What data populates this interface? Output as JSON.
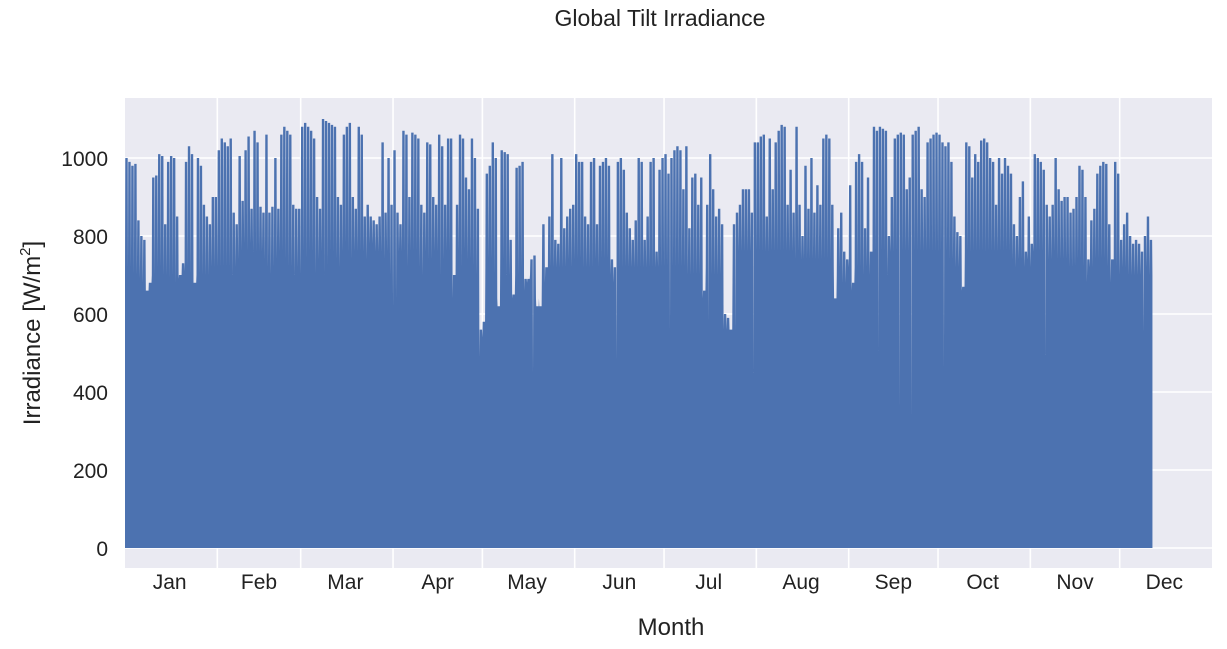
{
  "chart_data": {
    "type": "area",
    "title": "Global Tilt Irradiance",
    "xlabel": "Month",
    "ylabel": "Irradiance [W/m",
    "ylabel_sup": "2",
    "ylabel_suffix": "]",
    "ylim": [
      0,
      1150
    ],
    "yticks": [
      0,
      200,
      400,
      600,
      800,
      1000
    ],
    "xlim": [
      0,
      365
    ],
    "grid": true,
    "legend": "none",
    "colors": {
      "series": "#4c72b0",
      "plot_bg": "#eaeaf2",
      "grid": "#ffffff"
    },
    "month_labels": [
      "Jan",
      "Feb",
      "Mar",
      "Apr",
      "May",
      "Jun",
      "Jul",
      "Aug",
      "Sep",
      "Oct",
      "Nov",
      "Dec"
    ],
    "month_label_days": [
      15,
      45,
      74,
      105,
      135,
      166,
      196,
      227,
      258,
      288,
      319,
      349
    ],
    "month_boundary_days": [
      0,
      31,
      59,
      90,
      120,
      151,
      181,
      212,
      243,
      273,
      304,
      334,
      365
    ],
    "series": [
      {
        "daily_peaks": [
          1000,
          990,
          980,
          985,
          840,
          800,
          790,
          660,
          680,
          950,
          955,
          1010,
          1005,
          830,
          990,
          1005,
          1000,
          850,
          700,
          730,
          990,
          1030,
          1010,
          680,
          1000,
          980,
          880,
          850,
          830,
          900,
          900,
          1020,
          1050,
          1040,
          1030,
          1050,
          860,
          830,
          1005,
          890,
          1020,
          1055,
          870,
          1070,
          1040,
          875,
          860,
          1060,
          860,
          875,
          1000,
          870,
          1060,
          1080,
          1070,
          1060,
          880,
          870,
          870,
          1080,
          1090,
          1080,
          1070,
          1050,
          900,
          870,
          1100,
          1095,
          1090,
          1085,
          1080,
          900,
          880,
          1060,
          1080,
          1090,
          900,
          870,
          1080,
          1060,
          850,
          880,
          850,
          840,
          830,
          850,
          1040,
          860,
          1000,
          880,
          1020,
          860,
          830,
          1070,
          1060,
          900,
          1065,
          1060,
          1050,
          880,
          860,
          1040,
          1035,
          900,
          880,
          1060,
          1030,
          880,
          1050,
          1050,
          700,
          880,
          1060,
          1050,
          950,
          920,
          1050,
          1000,
          870,
          560,
          580,
          960,
          980,
          1040,
          1000,
          620,
          1020,
          1015,
          1010,
          790,
          650,
          975,
          980,
          990,
          690,
          690,
          740,
          750,
          620,
          620,
          830,
          720,
          850,
          1010,
          790,
          780,
          1000,
          820,
          850,
          870,
          880,
          1010,
          990,
          990,
          850,
          830,
          990,
          1000,
          830,
          980,
          990,
          1000,
          980,
          740,
          720,
          990,
          1000,
          970,
          860,
          820,
          790,
          840,
          1000,
          990,
          790,
          850,
          990,
          1000,
          760,
          970,
          1000,
          1010,
          960,
          1000,
          1020,
          1030,
          1020,
          920,
          1030,
          820,
          950,
          960,
          880,
          950,
          660,
          880,
          1010,
          920,
          850,
          870,
          830,
          600,
          590,
          560,
          830,
          860,
          880,
          920,
          920,
          920,
          860,
          1040,
          1040,
          1055,
          1060,
          850,
          1050,
          920,
          1040,
          1070,
          1085,
          1080,
          880,
          970,
          860,
          1080,
          880,
          800,
          980,
          870,
          1000,
          860,
          930,
          880,
          1050,
          1060,
          1050,
          880,
          640,
          820,
          860,
          760,
          740,
          930,
          680,
          990,
          1010,
          990,
          820,
          950,
          760,
          1080,
          1070,
          1080,
          1075,
          1070,
          800,
          900,
          1050,
          1060,
          1065,
          1060,
          920,
          950,
          1060,
          1070,
          1080,
          920,
          900,
          1040,
          1050,
          1060,
          1065,
          1060,
          1040,
          1030,
          1040,
          990,
          850,
          810,
          800,
          670,
          1040,
          1030,
          950,
          1010,
          990,
          1045,
          1050,
          1040,
          1000,
          990,
          880,
          1000,
          960,
          1000,
          980,
          960,
          830,
          800,
          900,
          940,
          760,
          850,
          780,
          1010,
          1000,
          990,
          970,
          880,
          850,
          880,
          1000,
          920,
          890,
          900,
          900,
          860,
          870,
          900,
          980,
          970,
          900,
          740,
          840,
          870,
          960,
          980,
          990,
          985,
          830,
          740,
          990,
          960,
          790,
          830,
          860,
          800,
          780,
          790,
          780,
          760,
          800,
          850,
          790
        ],
        "deep_dips": [
          [
            119,
            490
          ],
          [
            137,
            445
          ],
          [
            165,
            480
          ],
          [
            183,
            560
          ],
          [
            196,
            580
          ],
          [
            205,
            555
          ],
          [
            211,
            450
          ],
          [
            253,
            505
          ],
          [
            260,
            360
          ],
          [
            264,
            335
          ],
          [
            275,
            460
          ],
          [
            309,
            495
          ],
          [
            342,
            550
          ]
        ],
        "base_level": [
          700,
          720,
          720,
          700,
          700,
          690,
          680,
          660,
          680,
          700,
          700,
          720,
          720,
          700,
          700,
          690,
          700,
          680,
          690,
          700,
          710,
          720,
          700,
          680,
          700,
          700,
          700,
          700,
          700,
          720,
          720,
          720,
          720,
          720,
          720,
          720,
          700,
          720,
          740,
          760,
          780,
          760,
          780,
          760,
          760,
          760,
          760,
          740,
          720,
          700,
          720,
          740,
          760,
          760,
          740,
          720,
          720,
          700,
          720,
          700,
          760,
          740,
          760,
          760,
          700,
          740,
          760,
          700,
          720,
          760,
          760,
          740,
          720,
          760,
          780,
          760,
          740,
          760,
          760,
          760,
          760,
          740,
          780,
          780,
          760,
          760,
          760,
          740,
          760,
          700,
          620,
          640,
          760,
          760,
          760,
          720,
          760,
          760,
          760,
          720,
          700,
          760,
          740,
          740,
          760,
          760,
          700,
          740,
          760,
          760,
          640,
          700,
          760,
          720,
          760,
          740,
          740,
          720,
          700,
          520,
          540,
          720,
          740,
          740,
          700,
          640,
          760,
          740,
          700,
          700,
          640,
          700,
          700,
          720,
          660,
          680,
          700,
          720,
          640,
          640,
          720,
          680,
          720,
          720,
          720,
          720,
          720,
          720,
          720,
          740,
          720,
          740,
          740,
          740,
          720,
          720,
          720,
          720,
          740,
          720,
          740,
          740,
          740,
          700,
          680,
          720,
          720,
          720,
          720,
          720,
          720,
          720,
          720,
          720,
          720,
          720,
          720,
          720,
          720,
          720,
          720,
          720,
          720,
          720,
          720,
          720,
          720,
          720,
          720,
          700,
          700,
          700,
          700,
          700,
          640,
          720,
          720,
          700,
          700,
          700,
          700,
          560,
          560,
          560,
          700,
          740,
          760,
          760,
          760,
          760,
          760,
          760,
          760,
          760,
          760,
          760,
          760,
          760,
          760,
          760,
          760,
          760,
          760,
          760,
          760,
          740,
          760,
          740,
          740,
          740,
          740,
          740,
          740,
          740,
          740,
          740,
          740,
          740,
          720,
          700,
          720,
          680,
          680,
          720,
          660,
          720,
          720,
          720,
          700,
          720,
          700,
          760,
          760,
          760,
          760,
          760,
          700,
          760,
          760,
          760,
          760,
          760,
          760,
          760,
          760,
          760,
          760,
          760,
          760,
          760,
          760,
          760,
          760,
          760,
          760,
          760,
          760,
          740,
          740,
          720,
          720,
          660,
          760,
          760,
          760,
          760,
          760,
          760,
          760,
          760,
          760,
          760,
          760,
          760,
          760,
          760,
          760,
          760,
          740,
          720,
          740,
          740,
          720,
          740,
          720,
          760,
          760,
          760,
          760,
          740,
          740,
          740,
          760,
          740,
          740,
          740,
          740,
          720,
          720,
          720,
          740,
          740,
          720,
          680,
          720,
          720,
          740,
          740,
          740,
          740,
          720,
          680,
          740,
          720,
          700,
          720,
          720,
          700,
          700,
          700,
          700,
          700,
          700,
          720,
          700
        ]
      }
    ]
  }
}
